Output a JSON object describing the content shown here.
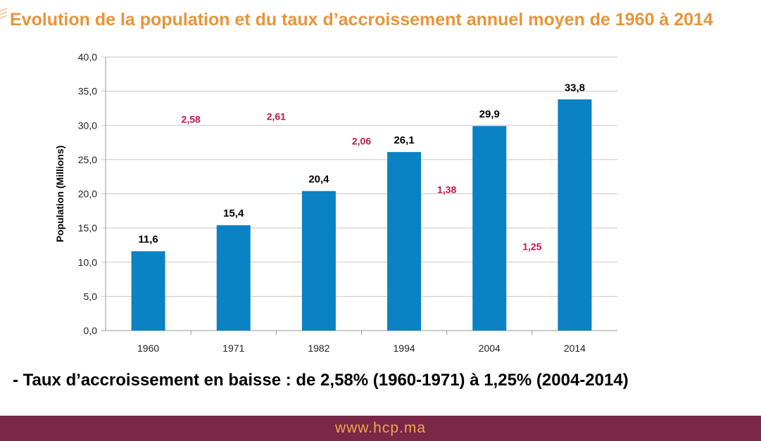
{
  "title": "Evolution de la population et du taux d’accroissement annuel moyen de 1960 à 2014",
  "note": "-  Taux d’accroissement en baisse : de 2,58% (1960-1971)  à 1,25% (2004-2014)",
  "footer": {
    "url": "www.hcp.ma"
  },
  "colors": {
    "bar": "#0a82c4",
    "rate_label": "#c0174f",
    "title": "#e8943a",
    "footer_bg": "#7a2748",
    "footer_text": "#f0a64a"
  },
  "chart_data": {
    "type": "bar",
    "title": "",
    "xlabel": "",
    "ylabel": "Population (Millions)",
    "categories": [
      "1960",
      "1971",
      "1982",
      "1994",
      "2004",
      "2014"
    ],
    "values": [
      11.6,
      15.4,
      20.4,
      26.1,
      29.9,
      33.8
    ],
    "value_labels": [
      "11,6",
      "15,4",
      "20,4",
      "26,1",
      "29,9",
      "33,8"
    ],
    "ylim": [
      0,
      40
    ],
    "yticks": [
      0,
      5,
      10,
      15,
      20,
      25,
      30,
      35,
      40
    ],
    "ytick_labels": [
      "0,0",
      "5,0",
      "10,0",
      "15,0",
      "20,0",
      "25,0",
      "30,0",
      "35,0",
      "40,0"
    ],
    "grid": true,
    "legend": "none",
    "annotations": [
      {
        "text": "2,58",
        "x_between": [
          "1960",
          "1971"
        ],
        "y": 30.9
      },
      {
        "text": "2,61",
        "x_between": [
          "1971",
          "1982"
        ],
        "y": 31.3
      },
      {
        "text": "2,06",
        "x_between": [
          "1982",
          "1994"
        ],
        "y": 27.7
      },
      {
        "text": "1,38",
        "x_between": [
          "1994",
          "2004"
        ],
        "y": 20.6
      },
      {
        "text": "1,25",
        "x_between": [
          "2004",
          "2014"
        ],
        "y": 12.3
      }
    ]
  }
}
